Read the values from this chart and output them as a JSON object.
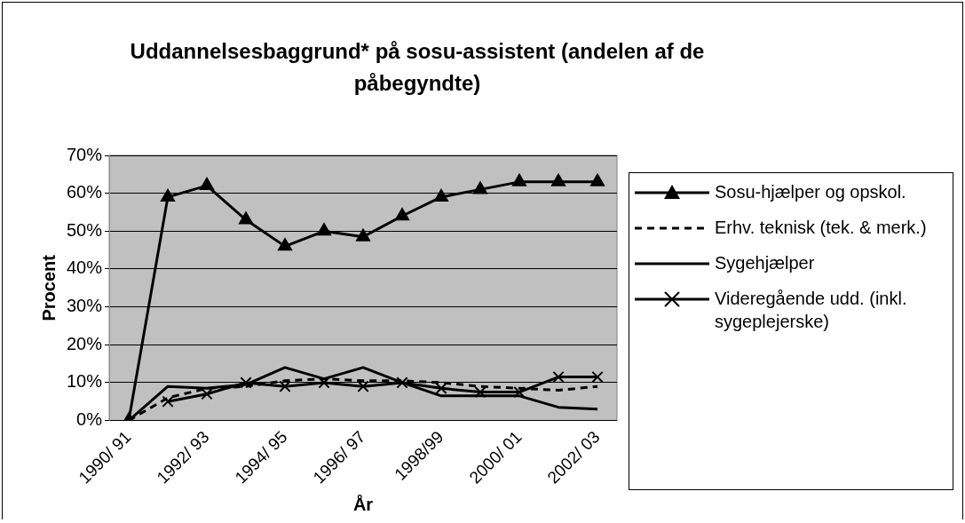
{
  "chart_data": {
    "type": "line",
    "title": "Uddannelsesbaggrund* på sosu-assistent (andelen af de påbegyndte)",
    "xlabel": "År",
    "ylabel": "Procent",
    "categories": [
      "1990/ 91",
      null,
      "1992/ 93",
      null,
      "1994/ 95",
      null,
      "1996/ 97",
      null,
      "1998/99",
      null,
      "2000/ 01",
      null,
      "2002/ 03"
    ],
    "series": [
      {
        "name": "Sosu-hjælper og opskol.",
        "color": "#000000",
        "marker": "triangle",
        "line_style": "solid",
        "values": [
          0,
          59,
          62,
          53,
          46,
          50,
          48.5,
          54,
          59,
          61,
          63,
          63,
          63
        ]
      },
      {
        "name": "Erhv. teknisk (tek. & merk.)",
        "color": "#000000",
        "marker": "none",
        "line_style": "dashed",
        "values": [
          0,
          6,
          8.5,
          9,
          10.5,
          11,
          10.5,
          10.5,
          10,
          9,
          8.5,
          8,
          9
        ]
      },
      {
        "name": "Sygehjælper",
        "color": "#000000",
        "marker": "none",
        "line_style": "solid",
        "values": [
          0,
          9,
          8.5,
          9.5,
          14,
          11,
          14,
          10,
          6.5,
          6.5,
          6.5,
          3.5,
          3
        ]
      },
      {
        "name": "Videregående udd. (inkl. sygeplejerske)",
        "color": "#000000",
        "marker": "cross",
        "line_style": "solid",
        "values": [
          null,
          5,
          7,
          10,
          9,
          10,
          9,
          10,
          8.5,
          7.5,
          7.5,
          11.5,
          11.5
        ]
      }
    ],
    "ylim": [
      0,
      70
    ],
    "yticks": [
      {
        "value": 0,
        "label": "0%"
      },
      {
        "value": 10,
        "label": "10%"
      },
      {
        "value": 20,
        "label": "20%"
      },
      {
        "value": 30,
        "label": "30%"
      },
      {
        "value": 40,
        "label": "40%"
      },
      {
        "value": 50,
        "label": "50%"
      },
      {
        "value": 60,
        "label": "60%"
      },
      {
        "value": 70,
        "label": "70%"
      }
    ],
    "grid": "y",
    "legend": "right"
  }
}
